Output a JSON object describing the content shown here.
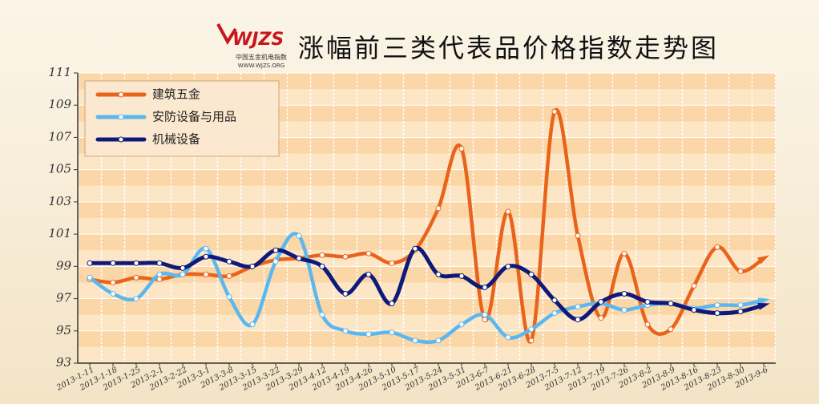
{
  "chart_data": {
    "type": "line",
    "title": "涨幅前三类代表品价格指数走势图",
    "logo": {
      "mark": "WJZS",
      "subtitle": "中国五金机电指数",
      "url": "WWW.WJZS.ORG"
    },
    "categories": [
      "2013-1-11",
      "2013-1-18",
      "2013-1-25",
      "2013-2-1",
      "2013-2-22",
      "2013-3-1",
      "2013-3-8",
      "2013-3-15",
      "2013-3-22",
      "2013-3-29",
      "2013-4-12",
      "2013-4-19",
      "2013-4-26",
      "2013-5-10",
      "2013-5-17",
      "2013-5-24",
      "2013-5-31",
      "2013-6-7",
      "2013-6-21",
      "2013-6-28",
      "2013-7-5",
      "2013-7-12",
      "2013-7-19",
      "2013-7-26",
      "2013-8-2",
      "2013-8-9",
      "2013-8-16",
      "2013-8-23",
      "2013-8-30",
      "2013-9-6"
    ],
    "series": [
      {
        "name": "建筑五金",
        "color": "#e8641b",
        "values": [
          98.2,
          98.0,
          98.3,
          98.2,
          98.5,
          98.5,
          98.4,
          99.0,
          99.4,
          99.5,
          99.7,
          99.6,
          99.8,
          99.2,
          100.0,
          102.6,
          106.3,
          95.7,
          102.4,
          94.4,
          108.6,
          100.9,
          95.8,
          99.8,
          95.4,
          95.1,
          97.8,
          100.2,
          98.7,
          99.5
        ]
      },
      {
        "name": "安防设备与用品",
        "color": "#5bb8ef",
        "values": [
          98.3,
          97.3,
          97.0,
          98.5,
          98.5,
          100.1,
          97.1,
          95.4,
          99.3,
          100.9,
          96.0,
          95.0,
          94.8,
          94.9,
          94.4,
          94.4,
          95.4,
          96.0,
          94.6,
          95.1,
          96.1,
          96.5,
          96.7,
          96.3,
          96.6,
          96.7,
          96.4,
          96.6,
          96.6,
          96.9
        ]
      },
      {
        "name": "机械设备",
        "color": "#0e1a7a",
        "values": [
          99.2,
          99.2,
          99.2,
          99.2,
          98.9,
          99.6,
          99.3,
          99.0,
          100.0,
          99.5,
          99.0,
          97.3,
          98.5,
          96.7,
          100.1,
          98.5,
          98.4,
          97.7,
          99.0,
          98.5,
          96.9,
          95.7,
          96.8,
          97.3,
          96.8,
          96.7,
          96.3,
          96.1,
          96.2,
          96.6
        ]
      }
    ],
    "ylim": [
      93,
      111
    ],
    "yticks": [
      93,
      95,
      97,
      99,
      101,
      103,
      105,
      107,
      109,
      111
    ],
    "grid": true,
    "legend": "top-left"
  }
}
